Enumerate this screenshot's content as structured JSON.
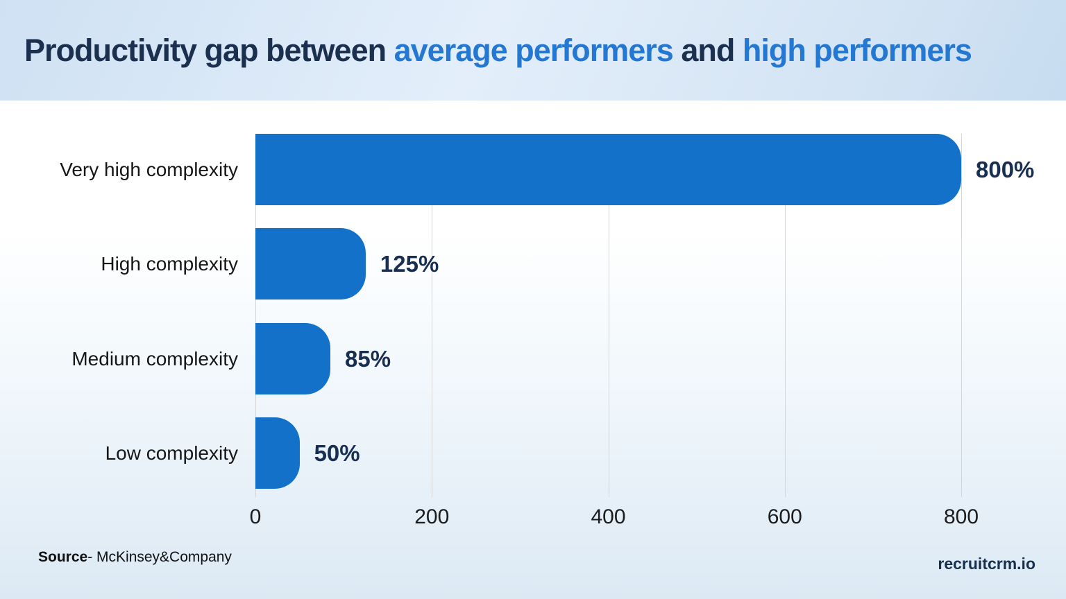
{
  "header": {
    "title_parts": [
      {
        "text": "Productivity gap between ",
        "color": "dark"
      },
      {
        "text": "average performers",
        "color": "blue"
      },
      {
        "text": " and ",
        "color": "dark"
      },
      {
        "text": "high performers",
        "color": "blue"
      }
    ]
  },
  "chart_data": {
    "type": "bar",
    "orientation": "horizontal",
    "title": "Productivity gap between average performers and high performers",
    "categories": [
      "Very high complexity",
      "High complexity",
      "Medium complexity",
      "Low complexity"
    ],
    "values": [
      800,
      125,
      85,
      50
    ],
    "value_labels": [
      "800%",
      "125%",
      "85%",
      "50%"
    ],
    "xlabel": "",
    "ylabel": "",
    "xlim": [
      0,
      800
    ],
    "x_ticks": [
      "0",
      "200",
      "400",
      "600",
      "800"
    ],
    "grid": true,
    "legend": "none",
    "bar_color": "#1371ca"
  },
  "footer": {
    "source_label": "Source",
    "source_rest": "- McKinsey&Company",
    "brand": "recruitcrm.io"
  },
  "colors": {
    "bar": "#1371ca",
    "title_dark": "#1b2f4e",
    "title_blue": "#2478d1",
    "category_label": "#161616",
    "value_label": "#182f52",
    "tick_label": "#1c1c1c",
    "gridline": "#d6d6d6",
    "brand_text": "#17304e"
  }
}
